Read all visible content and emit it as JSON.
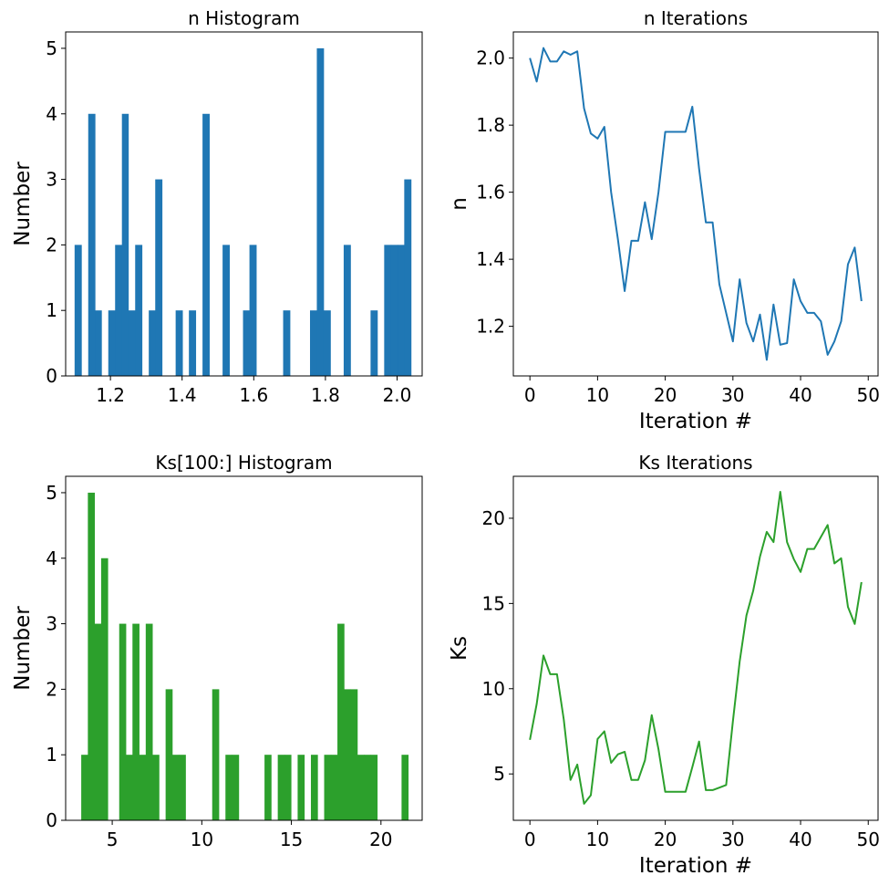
{
  "chart_data": [
    {
      "type": "bar",
      "title": "n Histogram",
      "xlabel": "",
      "ylabel": "Number",
      "color": "#1f77b4",
      "xlim": [
        1.075,
        2.07
      ],
      "ylim": [
        0,
        5.25
      ],
      "xticks": [
        1.2,
        1.4,
        1.6,
        1.8,
        2.0
      ],
      "xtick_labels": [
        "1.2",
        "1.4",
        "1.6",
        "1.8",
        "2.0"
      ],
      "yticks": [
        0,
        1,
        2,
        3,
        4,
        5
      ],
      "ytick_labels": [
        "0",
        "1",
        "2",
        "3",
        "4",
        "5"
      ],
      "bins": [
        {
          "x0": 1.1,
          "x1": 1.119,
          "count": 2
        },
        {
          "x0": 1.138,
          "x1": 1.157,
          "count": 4
        },
        {
          "x0": 1.157,
          "x1": 1.175,
          "count": 1
        },
        {
          "x0": 1.194,
          "x1": 1.213,
          "count": 1
        },
        {
          "x0": 1.213,
          "x1": 1.232,
          "count": 2
        },
        {
          "x0": 1.232,
          "x1": 1.25,
          "count": 4
        },
        {
          "x0": 1.25,
          "x1": 1.269,
          "count": 1
        },
        {
          "x0": 1.269,
          "x1": 1.288,
          "count": 2
        },
        {
          "x0": 1.307,
          "x1": 1.325,
          "count": 1
        },
        {
          "x0": 1.325,
          "x1": 1.344,
          "count": 3
        },
        {
          "x0": 1.382,
          "x1": 1.401,
          "count": 1
        },
        {
          "x0": 1.419,
          "x1": 1.438,
          "count": 1
        },
        {
          "x0": 1.457,
          "x1": 1.476,
          "count": 4
        },
        {
          "x0": 1.513,
          "x1": 1.532,
          "count": 2
        },
        {
          "x0": 1.57,
          "x1": 1.588,
          "count": 1
        },
        {
          "x0": 1.588,
          "x1": 1.607,
          "count": 2
        },
        {
          "x0": 1.682,
          "x1": 1.701,
          "count": 1
        },
        {
          "x0": 1.757,
          "x1": 1.776,
          "count": 1
        },
        {
          "x0": 1.776,
          "x1": 1.795,
          "count": 5
        },
        {
          "x0": 1.795,
          "x1": 1.814,
          "count": 1
        },
        {
          "x0": 1.851,
          "x1": 1.87,
          "count": 2
        },
        {
          "x0": 1.926,
          "x1": 1.945,
          "count": 1
        },
        {
          "x0": 1.964,
          "x1": 1.983,
          "count": 2
        },
        {
          "x0": 1.983,
          "x1": 2.002,
          "count": 2
        },
        {
          "x0": 2.002,
          "x1": 2.02,
          "count": 2
        },
        {
          "x0": 2.02,
          "x1": 2.039,
          "count": 3
        }
      ]
    },
    {
      "type": "line",
      "title": "n Iterations",
      "xlabel": "Iteration #",
      "ylabel": "n",
      "color": "#1f77b4",
      "xlim": [
        -2.45,
        51.45
      ],
      "ylim": [
        1.052,
        2.078
      ],
      "xticks": [
        0,
        10,
        20,
        30,
        40,
        50
      ],
      "xtick_labels": [
        "0",
        "10",
        "20",
        "30",
        "40",
        "50"
      ],
      "yticks": [
        1.2,
        1.4,
        1.6,
        1.8,
        2.0
      ],
      "ytick_labels": [
        "1.2",
        "1.4",
        "1.6",
        "1.8",
        "2.0"
      ],
      "x": [
        0,
        1,
        2,
        3,
        4,
        5,
        6,
        7,
        8,
        9,
        10,
        11,
        12,
        13,
        14,
        15,
        16,
        17,
        18,
        19,
        20,
        21,
        22,
        23,
        24,
        25,
        26,
        27,
        28,
        29,
        30,
        31,
        32,
        33,
        34,
        35,
        36,
        37,
        38,
        39,
        40,
        41,
        42,
        43,
        44,
        45,
        46,
        47,
        48,
        49
      ],
      "y": [
        2.0,
        1.93,
        2.03,
        1.99,
        1.99,
        2.02,
        2.01,
        2.02,
        1.85,
        1.775,
        1.76,
        1.795,
        1.6,
        1.46,
        1.305,
        1.455,
        1.455,
        1.57,
        1.46,
        1.6,
        1.78,
        1.78,
        1.78,
        1.78,
        1.855,
        1.67,
        1.51,
        1.51,
        1.325,
        1.24,
        1.155,
        1.34,
        1.21,
        1.155,
        1.235,
        1.1,
        1.265,
        1.145,
        1.15,
        1.34,
        1.275,
        1.24,
        1.24,
        1.215,
        1.115,
        1.155,
        1.215,
        1.385,
        1.435,
        1.275
      ]
    },
    {
      "type": "bar",
      "title": "Ks[100:] Histogram",
      "xlabel": "",
      "ylabel": "Number",
      "color": "#2ca02c",
      "xlim": [
        2.4,
        22.3
      ],
      "ylim": [
        0,
        5.25
      ],
      "xticks": [
        5,
        10,
        15,
        20
      ],
      "xtick_labels": [
        "5",
        "10",
        "15",
        "20"
      ],
      "yticks": [
        0,
        1,
        2,
        3,
        4,
        5
      ],
      "ytick_labels": [
        "0",
        "1",
        "2",
        "3",
        "4",
        "5"
      ],
      "bins": [
        {
          "x0": 3.27,
          "x1": 3.64,
          "count": 1
        },
        {
          "x0": 3.64,
          "x1": 4.01,
          "count": 5
        },
        {
          "x0": 4.01,
          "x1": 4.38,
          "count": 3
        },
        {
          "x0": 4.38,
          "x1": 4.75,
          "count": 4
        },
        {
          "x0": 5.39,
          "x1": 5.76,
          "count": 3
        },
        {
          "x0": 5.76,
          "x1": 6.13,
          "count": 1
        },
        {
          "x0": 6.13,
          "x1": 6.5,
          "count": 3
        },
        {
          "x0": 6.5,
          "x1": 6.87,
          "count": 1
        },
        {
          "x0": 6.87,
          "x1": 7.24,
          "count": 3
        },
        {
          "x0": 7.24,
          "x1": 7.61,
          "count": 1
        },
        {
          "x0": 7.98,
          "x1": 8.35,
          "count": 2
        },
        {
          "x0": 8.35,
          "x1": 8.72,
          "count": 1
        },
        {
          "x0": 8.72,
          "x1": 9.09,
          "count": 1
        },
        {
          "x0": 10.58,
          "x1": 10.95,
          "count": 2
        },
        {
          "x0": 11.32,
          "x1": 11.69,
          "count": 1
        },
        {
          "x0": 11.69,
          "x1": 12.06,
          "count": 1
        },
        {
          "x0": 13.5,
          "x1": 13.87,
          "count": 1
        },
        {
          "x0": 14.24,
          "x1": 14.61,
          "count": 1
        },
        {
          "x0": 14.61,
          "x1": 14.98,
          "count": 1
        },
        {
          "x0": 15.35,
          "x1": 15.72,
          "count": 1
        },
        {
          "x0": 16.09,
          "x1": 16.46,
          "count": 1
        },
        {
          "x0": 16.83,
          "x1": 17.2,
          "count": 1
        },
        {
          "x0": 17.2,
          "x1": 17.57,
          "count": 1
        },
        {
          "x0": 17.57,
          "x1": 17.94,
          "count": 3
        },
        {
          "x0": 17.94,
          "x1": 18.31,
          "count": 2
        },
        {
          "x0": 18.31,
          "x1": 18.68,
          "count": 2
        },
        {
          "x0": 18.68,
          "x1": 19.05,
          "count": 1
        },
        {
          "x0": 19.05,
          "x1": 19.42,
          "count": 1
        },
        {
          "x0": 19.42,
          "x1": 19.79,
          "count": 1
        },
        {
          "x0": 21.15,
          "x1": 21.52,
          "count": 1
        }
      ]
    },
    {
      "type": "line",
      "title": "Ks Iterations",
      "xlabel": "Iteration #",
      "ylabel": "Ks",
      "color": "#2ca02c",
      "xlim": [
        -2.45,
        51.45
      ],
      "ylim": [
        2.28,
        22.46
      ],
      "xticks": [
        0,
        10,
        20,
        30,
        40,
        50
      ],
      "xtick_labels": [
        "0",
        "10",
        "20",
        "30",
        "40",
        "50"
      ],
      "yticks": [
        5,
        10,
        15,
        20
      ],
      "ytick_labels": [
        "5",
        "10",
        "15",
        "20"
      ],
      "x": [
        0,
        1,
        2,
        3,
        4,
        5,
        6,
        7,
        8,
        9,
        10,
        11,
        12,
        13,
        14,
        15,
        16,
        17,
        18,
        19,
        20,
        21,
        22,
        23,
        24,
        25,
        26,
        27,
        28,
        29,
        30,
        31,
        32,
        33,
        34,
        35,
        36,
        37,
        38,
        39,
        40,
        41,
        42,
        43,
        44,
        45,
        46,
        47,
        48,
        49
      ],
      "y": [
        7.0,
        9.1,
        11.95,
        10.85,
        10.85,
        8.2,
        4.65,
        5.55,
        3.25,
        3.75,
        7.05,
        7.5,
        5.65,
        6.15,
        6.3,
        4.65,
        4.65,
        5.8,
        8.45,
        6.45,
        3.95,
        3.95,
        3.95,
        3.95,
        5.4,
        6.9,
        4.05,
        4.05,
        4.2,
        4.35,
        8.1,
        11.6,
        14.3,
        15.75,
        17.75,
        19.2,
        18.6,
        21.55,
        18.6,
        17.6,
        16.85,
        18.2,
        18.2,
        18.9,
        19.6,
        17.35,
        17.65,
        14.8,
        13.8,
        16.25
      ]
    }
  ]
}
